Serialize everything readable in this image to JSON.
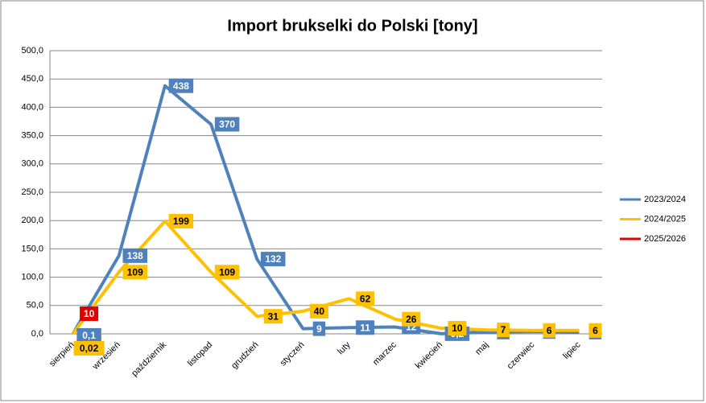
{
  "chart_data": {
    "type": "line",
    "title": "Import brukselki do Polski [tony]",
    "categories": [
      "sierpień",
      "wrzesień",
      "październik",
      "listopad",
      "grudzień",
      "styczeń",
      "luty",
      "marzec",
      "kwiecień",
      "maj",
      "czerwiec",
      "lipiec"
    ],
    "series": [
      {
        "name": "2023/2024",
        "color": "#4f81bd",
        "values": [
          0.1,
          138,
          438,
          370,
          132,
          9,
          11,
          12,
          0.2,
          3,
          4,
          3
        ],
        "value_labels": [
          "0,1",
          "138",
          "438",
          "370",
          "132",
          "9",
          "11",
          "12",
          "0,2",
          "3",
          "4",
          "3"
        ]
      },
      {
        "name": "2024/2025",
        "color": "#ffc000",
        "values": [
          0.02,
          109,
          199,
          109,
          31,
          40,
          62,
          26,
          10,
          7,
          6,
          6
        ],
        "value_labels": [
          "0,02",
          "109",
          "199",
          "109",
          "31",
          "40",
          "62",
          "26",
          "10",
          "7",
          "6",
          "6"
        ]
      },
      {
        "name": "2025/2026",
        "color": "#e00000",
        "values": [
          10,
          null,
          null,
          null,
          null,
          null,
          null,
          null,
          null,
          null,
          null,
          null
        ],
        "value_labels": [
          "10",
          null,
          null,
          null,
          null,
          null,
          null,
          null,
          null,
          null,
          null,
          null
        ]
      }
    ],
    "ylim": [
      0,
      500
    ],
    "yticks": [
      {
        "value": 0,
        "label": "0,0"
      },
      {
        "value": 50,
        "label": "50,0"
      },
      {
        "value": 100,
        "label": "100,0"
      },
      {
        "value": 150,
        "label": "150,0"
      },
      {
        "value": 200,
        "label": "200,0"
      },
      {
        "value": 250,
        "label": "250,0"
      },
      {
        "value": 300,
        "label": "300,0"
      },
      {
        "value": 350,
        "label": "350,0"
      },
      {
        "value": 400,
        "label": "400,0"
      },
      {
        "value": 450,
        "label": "450,0"
      },
      {
        "value": 500,
        "label": "500,0"
      }
    ],
    "grid": true,
    "legend": "right"
  }
}
